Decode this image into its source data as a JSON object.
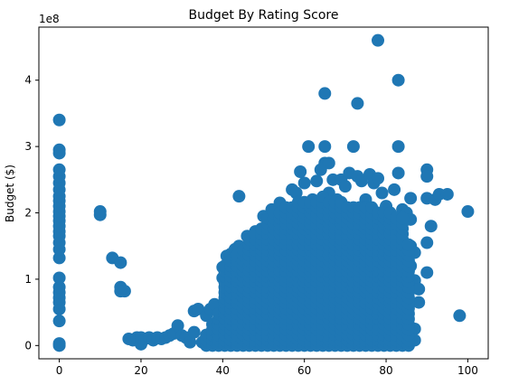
{
  "chart_data": {
    "type": "scatter",
    "title": "Budget By Rating Score",
    "xlabel": "",
    "ylabel": "Budget  ($)",
    "y_offset_label": "1e8",
    "xlim": [
      -5,
      105
    ],
    "ylim": [
      -0.2,
      4.8
    ],
    "y_unit_multiplier": 100000000,
    "x_ticks": [
      0,
      20,
      40,
      60,
      80,
      100
    ],
    "y_ticks": [
      0,
      1,
      2,
      3,
      4
    ],
    "marker_color": "#1f77b4",
    "grid": false,
    "legend": "none",
    "points": [
      [
        0,
        0.0
      ],
      [
        0,
        0.03
      ],
      [
        0,
        0.37
      ],
      [
        0,
        0.55
      ],
      [
        0,
        0.65
      ],
      [
        0,
        0.72
      ],
      [
        0,
        0.8
      ],
      [
        0,
        0.88
      ],
      [
        0,
        1.02
      ],
      [
        0,
        1.32
      ],
      [
        0,
        1.45
      ],
      [
        0,
        1.55
      ],
      [
        0,
        1.65
      ],
      [
        0,
        1.72
      ],
      [
        0,
        1.8
      ],
      [
        0,
        1.88
      ],
      [
        0,
        1.95
      ],
      [
        0,
        2.02
      ],
      [
        0,
        2.1
      ],
      [
        0,
        2.18
      ],
      [
        0,
        2.25
      ],
      [
        0,
        2.35
      ],
      [
        0,
        2.45
      ],
      [
        0,
        2.55
      ],
      [
        0,
        2.65
      ],
      [
        0,
        2.9
      ],
      [
        0,
        2.95
      ],
      [
        0,
        3.4
      ],
      [
        10,
        1.97
      ],
      [
        10,
        2.02
      ],
      [
        13,
        1.32
      ],
      [
        15,
        1.25
      ],
      [
        15,
        0.88
      ],
      [
        15,
        0.82
      ],
      [
        16,
        0.82
      ],
      [
        17,
        0.1
      ],
      [
        18,
        0.08
      ],
      [
        19,
        0.12
      ],
      [
        20,
        0.02
      ],
      [
        20,
        0.12
      ],
      [
        21,
        0.1
      ],
      [
        22,
        0.12
      ],
      [
        23,
        0.08
      ],
      [
        24,
        0.12
      ],
      [
        25,
        0.1
      ],
      [
        26,
        0.12
      ],
      [
        27,
        0.15
      ],
      [
        28,
        0.18
      ],
      [
        29,
        0.3
      ],
      [
        30,
        0.15
      ],
      [
        31,
        0.12
      ],
      [
        32,
        0.05
      ],
      [
        33,
        0.2
      ],
      [
        33,
        0.52
      ],
      [
        34,
        0.55
      ],
      [
        35,
        0.05
      ],
      [
        36,
        0.45
      ],
      [
        37,
        0.55
      ],
      [
        38,
        0.62
      ],
      [
        39,
        0.1
      ],
      [
        40,
        1.18
      ],
      [
        40,
        1.02
      ],
      [
        41,
        1.35
      ],
      [
        42,
        1.38
      ],
      [
        43,
        1.45
      ],
      [
        44,
        2.25
      ],
      [
        44,
        1.5
      ],
      [
        46,
        1.65
      ],
      [
        48,
        1.72
      ],
      [
        50,
        1.95
      ],
      [
        52,
        2.05
      ],
      [
        54,
        2.15
      ],
      [
        56,
        2.05
      ],
      [
        57,
        2.35
      ],
      [
        58,
        2.3
      ],
      [
        59,
        2.62
      ],
      [
        60,
        2.45
      ],
      [
        61,
        3.0
      ],
      [
        62,
        2.2
      ],
      [
        63,
        2.48
      ],
      [
        64,
        2.65
      ],
      [
        65,
        2.75
      ],
      [
        65,
        3.0
      ],
      [
        65,
        3.8
      ],
      [
        66,
        2.75
      ],
      [
        66,
        2.3
      ],
      [
        67,
        2.5
      ],
      [
        68,
        2.2
      ],
      [
        69,
        2.5
      ],
      [
        70,
        2.4
      ],
      [
        71,
        2.6
      ],
      [
        72,
        3.0
      ],
      [
        73,
        3.65
      ],
      [
        73,
        2.55
      ],
      [
        74,
        2.48
      ],
      [
        75,
        2.2
      ],
      [
        76,
        2.58
      ],
      [
        77,
        2.45
      ],
      [
        78,
        4.6
      ],
      [
        78,
        2.52
      ],
      [
        79,
        2.3
      ],
      [
        80,
        2.1
      ],
      [
        81,
        2.0
      ],
      [
        82,
        2.35
      ],
      [
        83,
        3.0
      ],
      [
        83,
        4.0
      ],
      [
        83,
        2.6
      ],
      [
        84,
        2.05
      ],
      [
        85,
        2.0
      ],
      [
        86,
        2.22
      ],
      [
        86,
        1.9
      ],
      [
        86,
        1.5
      ],
      [
        86,
        1.2
      ],
      [
        87,
        1.4
      ],
      [
        87,
        0.98
      ],
      [
        87,
        0.25
      ],
      [
        87,
        0.08
      ],
      [
        88,
        0.85
      ],
      [
        88,
        0.65
      ],
      [
        90,
        2.65
      ],
      [
        90,
        2.55
      ],
      [
        90,
        2.22
      ],
      [
        90,
        1.55
      ],
      [
        90,
        1.1
      ],
      [
        91,
        1.8
      ],
      [
        92,
        2.2
      ],
      [
        93,
        2.28
      ],
      [
        95,
        2.28
      ],
      [
        98,
        0.45
      ],
      [
        100,
        2.02
      ]
    ]
  }
}
